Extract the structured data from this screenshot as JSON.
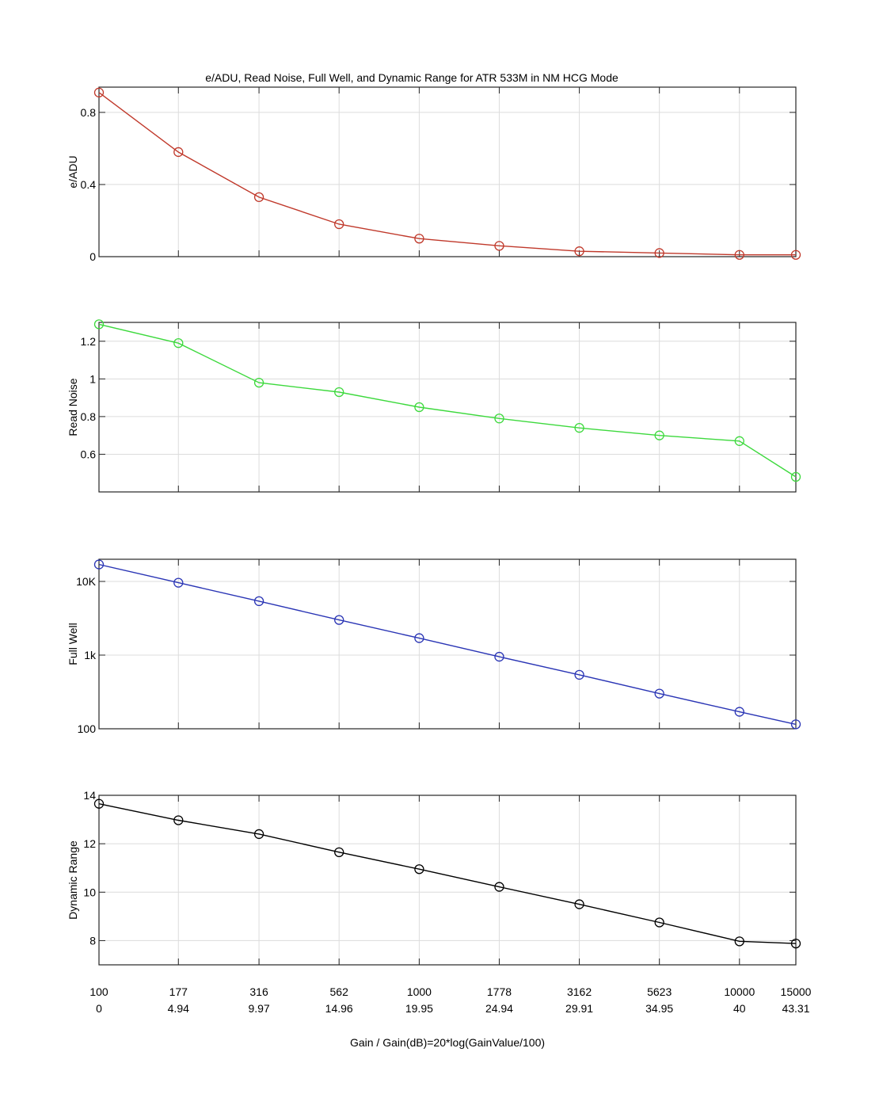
{
  "chart_data": {
    "type": "line",
    "title": "e/ADU, Read Noise, Full Well, and Dynamic Range for ATR 533M in NM HCG Mode",
    "xlabel": "Gain / Gain(dB)=20*log(GainValue/100)",
    "x": [
      100,
      177,
      316,
      562,
      1000,
      1778,
      3162,
      5623,
      10000,
      15000
    ],
    "x_tick_labels": [
      "100",
      "177",
      "316",
      "562",
      "1000",
      "1778",
      "3162",
      "5623",
      "10000",
      "15000"
    ],
    "x_tick_labels_db": [
      "0",
      "4.94",
      "9.97",
      "14.96",
      "19.95",
      "24.94",
      "29.91",
      "34.95",
      "40",
      "43.31"
    ],
    "x_scale": "log",
    "xlim": [
      100,
      15000
    ],
    "grid": true,
    "marker": "circle",
    "panels": [
      {
        "ylabel": "e/ADU",
        "color": "#c0392b",
        "yscale": "linear",
        "ylim": [
          0,
          0.94
        ],
        "yticks": [
          0,
          0.4,
          0.8
        ],
        "ytick_labels": [
          "0",
          "0.4",
          "0.8"
        ],
        "values": [
          0.91,
          0.58,
          0.33,
          0.18,
          0.1,
          0.06,
          0.03,
          0.02,
          0.01,
          0.01
        ]
      },
      {
        "ylabel": "Read Noise",
        "color": "#3dd93d",
        "yscale": "linear",
        "ylim": [
          0.4,
          1.3
        ],
        "yticks": [
          0.6,
          0.8,
          1,
          1.2
        ],
        "ytick_labels": [
          "0.6",
          "0.8",
          "1",
          "1.2"
        ],
        "values": [
          1.29,
          1.19,
          0.98,
          0.93,
          0.85,
          0.79,
          0.74,
          0.7,
          0.67,
          0.48
        ]
      },
      {
        "ylabel": "Full Well",
        "color": "#2a35b5",
        "yscale": "log",
        "ylim": [
          100,
          20000
        ],
        "yticks": [
          100,
          1000,
          10000
        ],
        "ytick_labels": [
          "100",
          "1k",
          "10K"
        ],
        "values": [
          17000,
          9600,
          5400,
          3000,
          1700,
          950,
          540,
          300,
          170,
          115
        ]
      },
      {
        "ylabel": "Dynamic Range",
        "color": "#000000",
        "yscale": "linear",
        "ylim": [
          7,
          14
        ],
        "yticks": [
          8,
          10,
          12,
          14
        ],
        "ytick_labels": [
          "8",
          "10",
          "12",
          "14"
        ],
        "values": [
          13.65,
          12.97,
          12.4,
          11.65,
          10.95,
          10.22,
          9.5,
          8.75,
          7.97,
          7.88
        ]
      }
    ]
  }
}
